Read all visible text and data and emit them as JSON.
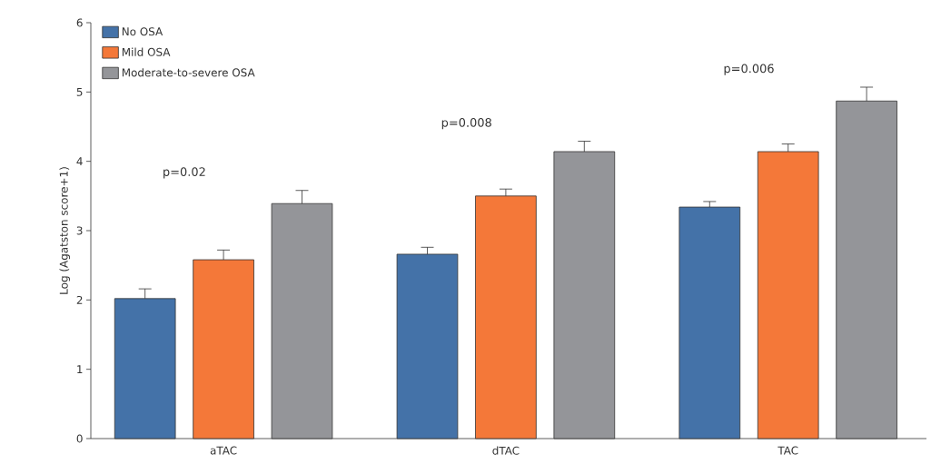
{
  "chart_data": {
    "type": "bar",
    "ylabel": "Log (Agatston score+1)",
    "categories": [
      "aTAC",
      "dTAC",
      "TAC"
    ],
    "series": [
      {
        "name": "No OSA",
        "color": "#4472a8",
        "values": [
          2.02,
          2.66,
          3.34
        ],
        "errors": [
          [
            2.02,
            2.16
          ],
          [
            2.66,
            2.76
          ],
          [
            3.34,
            3.42
          ]
        ]
      },
      {
        "name": "Mild OSA",
        "color": "#f47839",
        "values": [
          2.58,
          3.5,
          4.14
        ],
        "errors": [
          [
            2.58,
            2.72
          ],
          [
            3.5,
            3.6
          ],
          [
            4.14,
            4.25
          ]
        ]
      },
      {
        "name": "Moderate-to-severe OSA",
        "color": "#949599",
        "values": [
          3.39,
          4.14,
          4.87
        ],
        "errors": [
          [
            3.39,
            3.58
          ],
          [
            4.14,
            4.29
          ],
          [
            4.87,
            5.07
          ]
        ]
      }
    ],
    "annotations": [
      "p=0.02",
      "p=0.008",
      "p=0.006"
    ],
    "ylim": [
      0,
      6
    ],
    "yticks": [
      0,
      1,
      2,
      3,
      4,
      5,
      6
    ],
    "grid": false,
    "legend": "top left"
  }
}
